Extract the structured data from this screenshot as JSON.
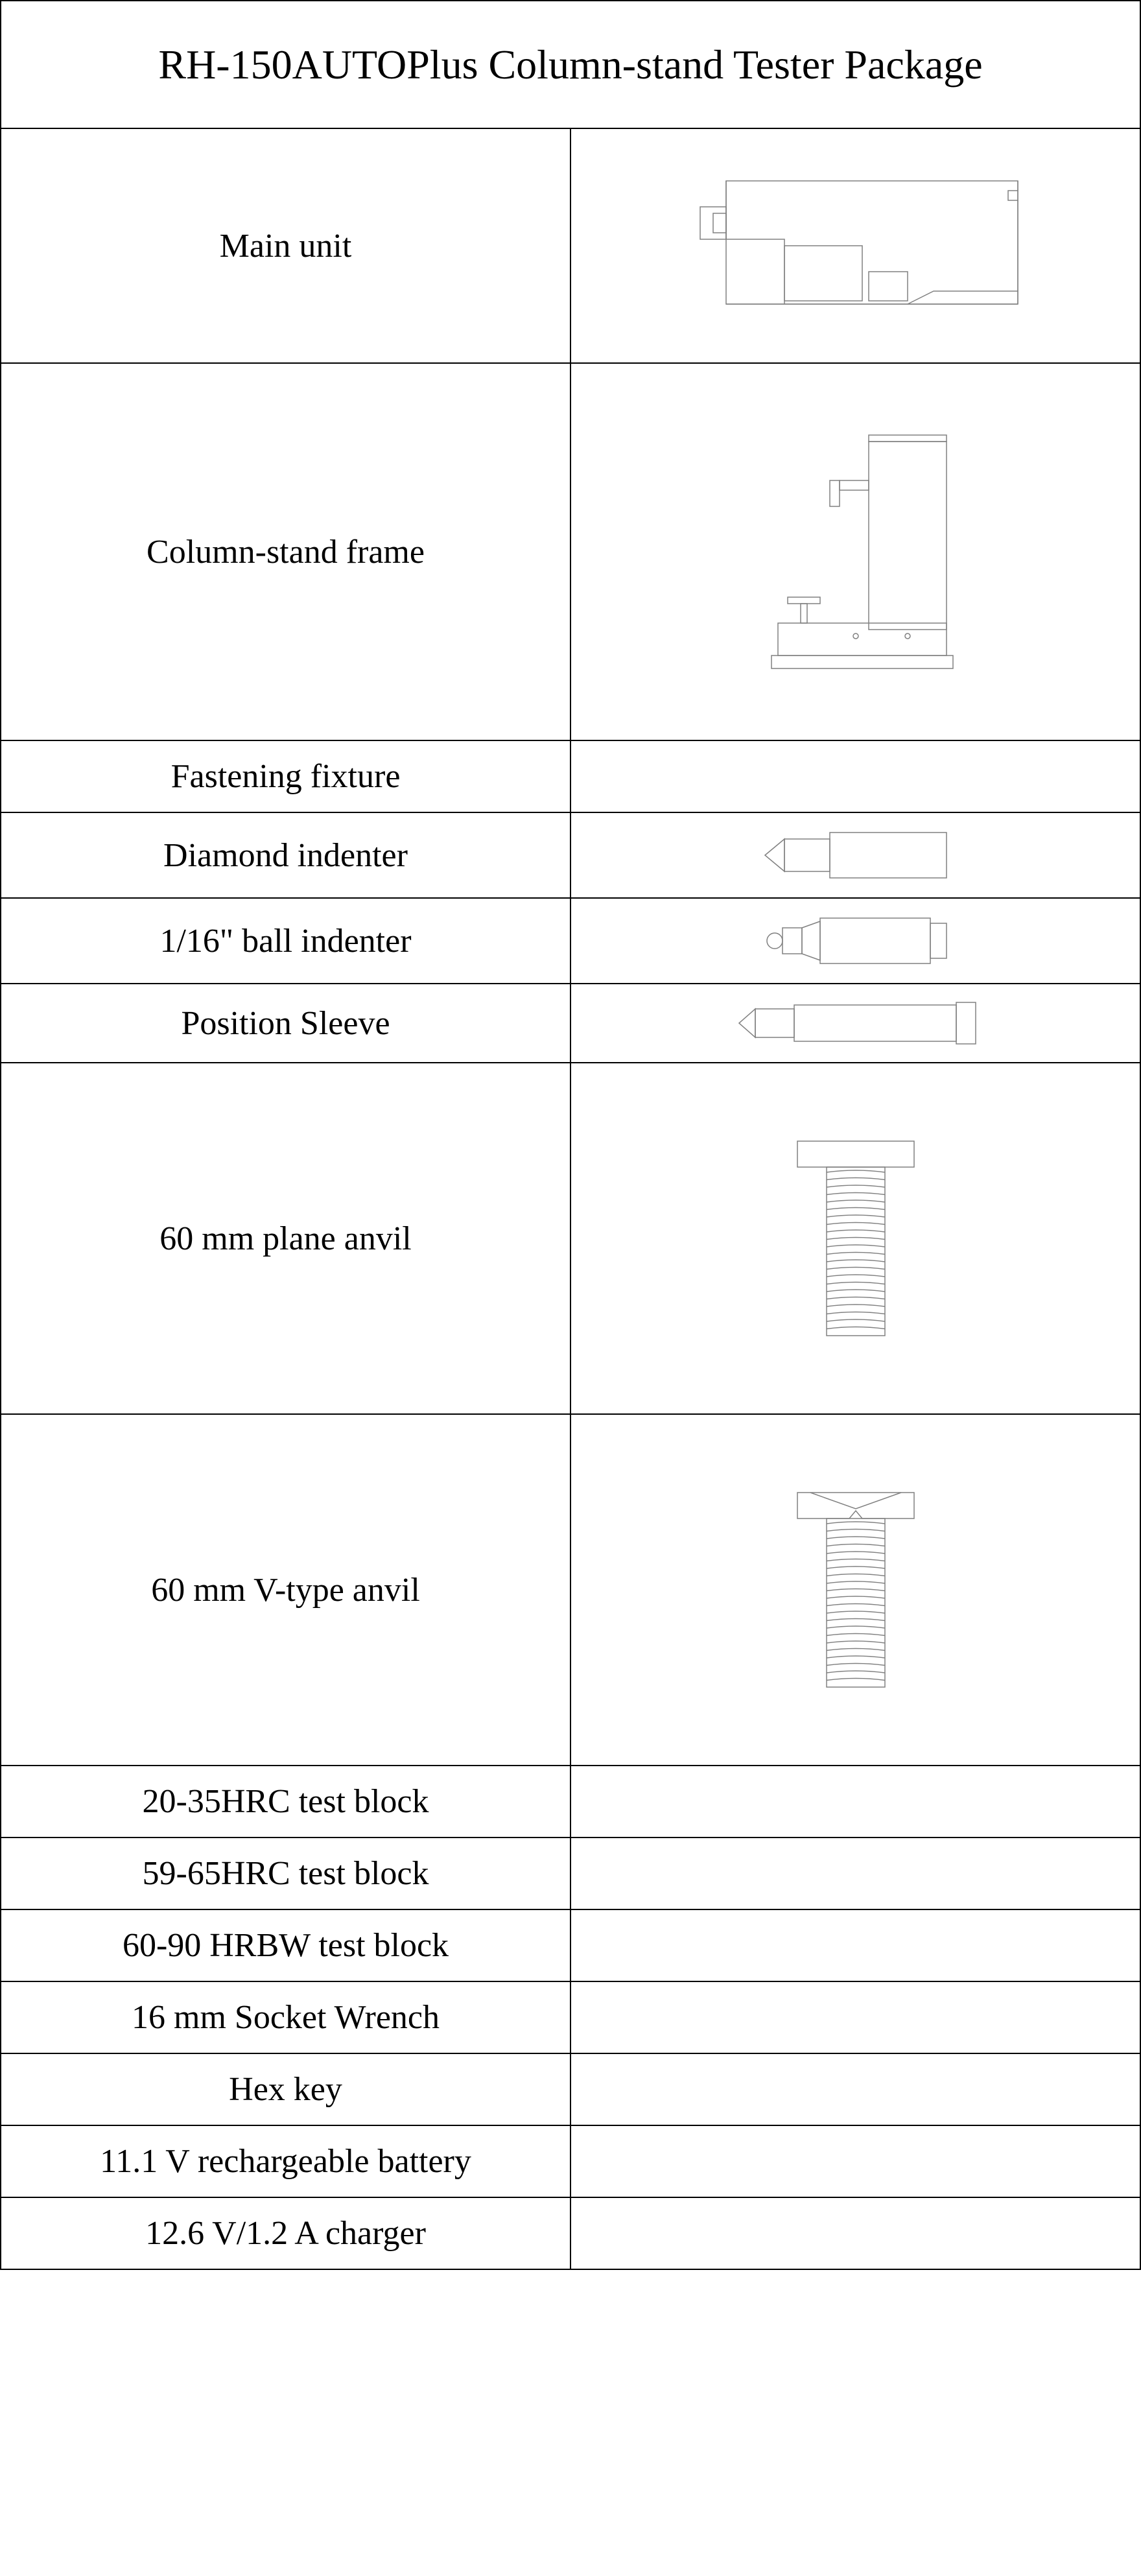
{
  "title": "RH-150AUTOPlus Column-stand Tester Package",
  "rows": [
    {
      "label": "Main unit",
      "icon": "main-unit",
      "height": "tall"
    },
    {
      "label": "Column-stand frame",
      "icon": "column-stand",
      "height": "taller"
    },
    {
      "label": "Fastening fixture",
      "icon": null,
      "height": "short"
    },
    {
      "label": "Diamond indenter",
      "icon": "diamond-indenter",
      "height": "short"
    },
    {
      "label": "1/16\" ball indenter",
      "icon": "ball-indenter",
      "height": "short"
    },
    {
      "label": "Position Sleeve",
      "icon": "position-sleeve",
      "height": "short"
    },
    {
      "label": "60 mm plane anvil",
      "icon": "plane-anvil",
      "height": "taller"
    },
    {
      "label": "60 mm V-type anvil",
      "icon": "v-anvil",
      "height": "taller"
    },
    {
      "label": "20-35HRC test block",
      "icon": null,
      "height": "short"
    },
    {
      "label": "59-65HRC test block",
      "icon": null,
      "height": "short"
    },
    {
      "label": "60-90 HRBW test block",
      "icon": null,
      "height": "short"
    },
    {
      "label": "16 mm Socket Wrench",
      "icon": null,
      "height": "short"
    },
    {
      "label": "Hex key",
      "icon": null,
      "height": "short"
    },
    {
      "label": "11.1 V rechargeable battery",
      "icon": null,
      "height": "short"
    },
    {
      "label": "12.6 V/1.2 A charger",
      "icon": null,
      "height": "short"
    }
  ],
  "svg_stroke": "#808080",
  "svg_stroke_width": 1.5,
  "svg_fill": "none"
}
